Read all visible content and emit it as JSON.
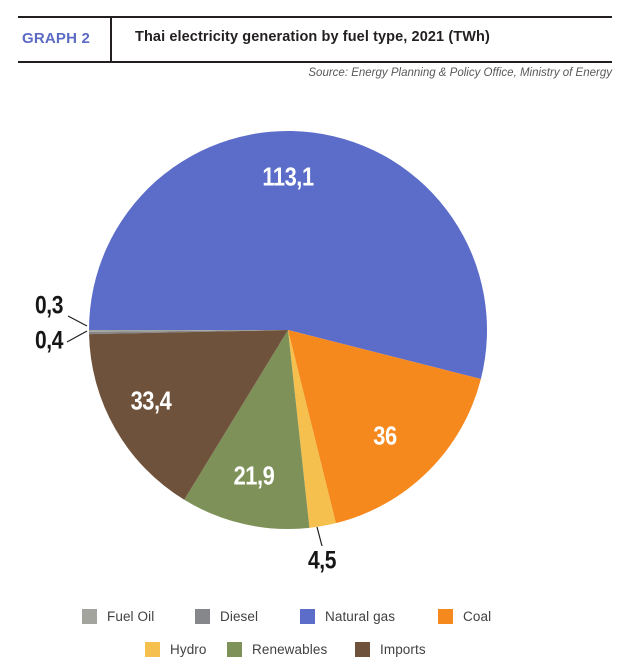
{
  "header": {
    "graph_label": "GRAPH 2",
    "title": "Thai electricity generation by fuel type, 2021 (TWh)",
    "source": "Source: Energy Planning & Policy Office, Ministry of Energy"
  },
  "colors": {
    "graph_label_accent": "#5C6BC4",
    "header_rule": "#231F20",
    "source_text": "#58595B",
    "legend_text": "#414042",
    "inside_label_text": "#FFFFFF",
    "outside_label_text": "#161616"
  },
  "chart_data": {
    "type": "pie",
    "title": "Thai electricity generation by fuel type, 2021 (TWh)",
    "unit": "TWh",
    "total": 209.6,
    "legend_position": "bottom",
    "series": [
      {
        "name": "Fuel Oil",
        "value": 0.3,
        "label": "0,3",
        "color": "#A3A49E"
      },
      {
        "name": "Diesel",
        "value": 0.4,
        "label": "0,4",
        "color": "#85878A"
      },
      {
        "name": "Natural gas",
        "value": 113.1,
        "label": "113,1",
        "color": "#5B6CC9"
      },
      {
        "name": "Coal",
        "value": 36,
        "label": "36",
        "color": "#F6891E"
      },
      {
        "name": "Hydro",
        "value": 4.5,
        "label": "4,5",
        "color": "#F5C04E"
      },
      {
        "name": "Renewables",
        "value": 21.9,
        "label": "21,9",
        "color": "#7E9159"
      },
      {
        "name": "Imports",
        "value": 33.4,
        "label": "33,4",
        "color": "#6E523C"
      }
    ]
  }
}
